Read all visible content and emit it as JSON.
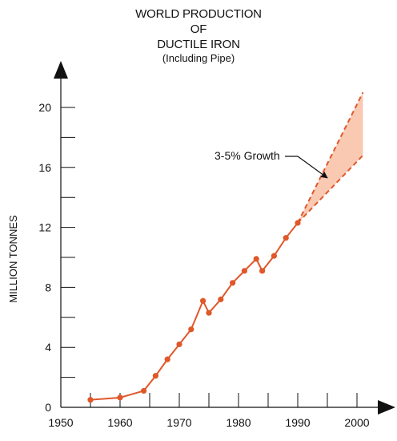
{
  "chart_data": {
    "type": "line",
    "title_lines": [
      "WORLD PRODUCTION",
      "OF",
      "DUCTILE IRON"
    ],
    "subtitle": "(Including Pipe)",
    "ylabel": "MILLION TONNES",
    "xlabel": "",
    "xlim": [
      1950,
      2003
    ],
    "ylim": [
      0,
      22
    ],
    "x_ticks": [
      1950,
      1960,
      1970,
      1980,
      1990,
      2000
    ],
    "y_ticks": [
      0,
      4,
      8,
      12,
      16,
      20
    ],
    "grid": false,
    "series": [
      {
        "color": "#e0572a",
        "x": [
          1955,
          1960,
          1964,
          1966,
          1968,
          1970,
          1972,
          1974,
          1975,
          1977,
          1979,
          1981,
          1983,
          1984,
          1986,
          1988,
          1990
        ],
        "y": [
          0.5,
          0.65,
          1.1,
          2.1,
          3.2,
          4.2,
          5.2,
          7.1,
          6.3,
          7.2,
          8.3,
          9.1,
          9.9,
          9.1,
          10.1,
          11.3,
          12.3
        ]
      }
    ],
    "projection": {
      "start_x": 1990,
      "start_y": 12.3,
      "end_x": 2001,
      "upper_end_y": 21.0,
      "lower_end_y": 16.8,
      "fill_color": "#f9c9b2",
      "line_color": "#e0572a"
    },
    "annotation": {
      "text": "3-5% Growth",
      "arrow_target_x": 1995,
      "arrow_target_y": 15.3
    }
  }
}
